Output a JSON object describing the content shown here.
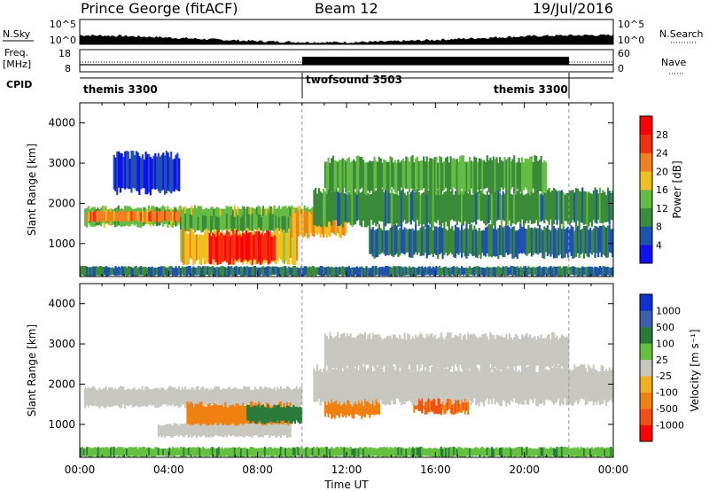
{
  "header": {
    "station": "Prince George (fitACF)",
    "beam": "Beam 12",
    "date": "19/Jul/2016"
  },
  "panels": {
    "nsky_label": "N.Sky",
    "nsearch_label": "N.Search",
    "freq_label_line1": "Freq.",
    "freq_label_line2": "[MHz]",
    "nave_label": "Nave",
    "cpid_label": "CPID",
    "nsky_ticks": [
      "10^5",
      "10^0"
    ],
    "nsearch_ticks": [
      "10^5",
      "10^0"
    ],
    "freq_ticks": [
      "18",
      "8"
    ],
    "nave_ticks": [
      "60",
      "0"
    ]
  },
  "cpid": [
    {
      "name": "themis 3300",
      "start_hour": 0,
      "end_hour": 10
    },
    {
      "name": "twofsound 3503",
      "start_hour": 10,
      "end_hour": 22
    },
    {
      "name": "themis 3300",
      "start_hour": 22,
      "end_hour": 24
    }
  ],
  "axes": {
    "ylabel": "Slant Range [km]",
    "xlabel": "Time UT",
    "yticks": [
      "1000",
      "2000",
      "3000",
      "4000"
    ],
    "xticks": [
      "00:00",
      "04:00",
      "08:00",
      "12:00",
      "16:00",
      "20:00",
      "00:00"
    ]
  },
  "power_colorbar": {
    "label": "Power [dB]",
    "ticks": [
      "4",
      "8",
      "12",
      "16",
      "20",
      "24",
      "28"
    ],
    "colors": [
      "#1010f0",
      "#2050b0",
      "#3a8a3a",
      "#66bb44",
      "#f0c020",
      "#f08020",
      "#f03010",
      "#ff0000"
    ]
  },
  "velocity_colorbar": {
    "label": "Velocity [m s⁻¹]",
    "ticks": [
      "1000",
      "500",
      "100",
      "25",
      "-25",
      "-100",
      "-500",
      "-1000"
    ],
    "colors": [
      "#1030d0",
      "#3a60b0",
      "#2a7a3a",
      "#66c040",
      "#c8c8c0",
      "#f0b020",
      "#f08010",
      "#f05010",
      "#ff0000"
    ]
  },
  "chart_data": {
    "type": "heatmap",
    "title": "Prince George (fitACF) Beam 12 19/Jul/2016",
    "x_range_hours": [
      0,
      24
    ],
    "y_range_km": [
      180,
      4500
    ],
    "power_regions": [
      {
        "t0": 0.2,
        "t1": 10.5,
        "r0": 1450,
        "r1": 1900,
        "db": 14
      },
      {
        "t0": 0.3,
        "t1": 4.5,
        "r0": 1550,
        "r1": 1800,
        "db": 22
      },
      {
        "t0": 4.5,
        "t1": 9.5,
        "r0": 1300,
        "r1": 1700,
        "db": 12
      },
      {
        "t0": 4.5,
        "t1": 9.8,
        "r0": 550,
        "r1": 1300,
        "db": 18
      },
      {
        "t0": 5.8,
        "t1": 8.8,
        "r0": 550,
        "r1": 1250,
        "db": 28
      },
      {
        "t0": 9.5,
        "t1": 12.0,
        "r0": 1200,
        "r1": 1800,
        "db": 20
      },
      {
        "t0": 10.5,
        "t1": 24.0,
        "r0": 1500,
        "r1": 2300,
        "db": 10
      },
      {
        "t0": 13.0,
        "t1": 24.0,
        "r0": 700,
        "r1": 1400,
        "db": 8
      },
      {
        "t0": 1.5,
        "t1": 4.5,
        "r0": 2300,
        "r1": 3200,
        "db": 4
      },
      {
        "t0": 11.0,
        "t1": 21.0,
        "r0": 2300,
        "r1": 3100,
        "db": 12
      },
      {
        "t0": 0.0,
        "t1": 24.0,
        "r0": 200,
        "r1": 420,
        "db": 8
      }
    ],
    "velocity_regions": [
      {
        "t0": 0.2,
        "t1": 10.0,
        "r0": 1450,
        "r1": 1900,
        "v": 0
      },
      {
        "t0": 4.8,
        "t1": 9.5,
        "r0": 900,
        "r1": 1500,
        "v": -200
      },
      {
        "t0": 7.5,
        "t1": 10.0,
        "r0": 1050,
        "r1": 1450,
        "v": 200
      },
      {
        "t0": 11.0,
        "t1": 13.5,
        "r0": 1200,
        "r1": 1800,
        "v": -200
      },
      {
        "t0": 15.0,
        "t1": 17.5,
        "r0": 1300,
        "r1": 1900,
        "v": -300
      },
      {
        "t0": 10.5,
        "t1": 24.0,
        "r0": 1550,
        "r1": 2400,
        "v": 0
      },
      {
        "t0": 11.0,
        "t1": 22.0,
        "r0": 2400,
        "r1": 3200,
        "v": 0
      },
      {
        "t0": 3.5,
        "t1": 9.5,
        "r0": 700,
        "r1": 1000,
        "v": 0
      },
      {
        "t0": 0.0,
        "t1": 24.0,
        "r0": 200,
        "r1": 420,
        "v": 50
      }
    ]
  }
}
